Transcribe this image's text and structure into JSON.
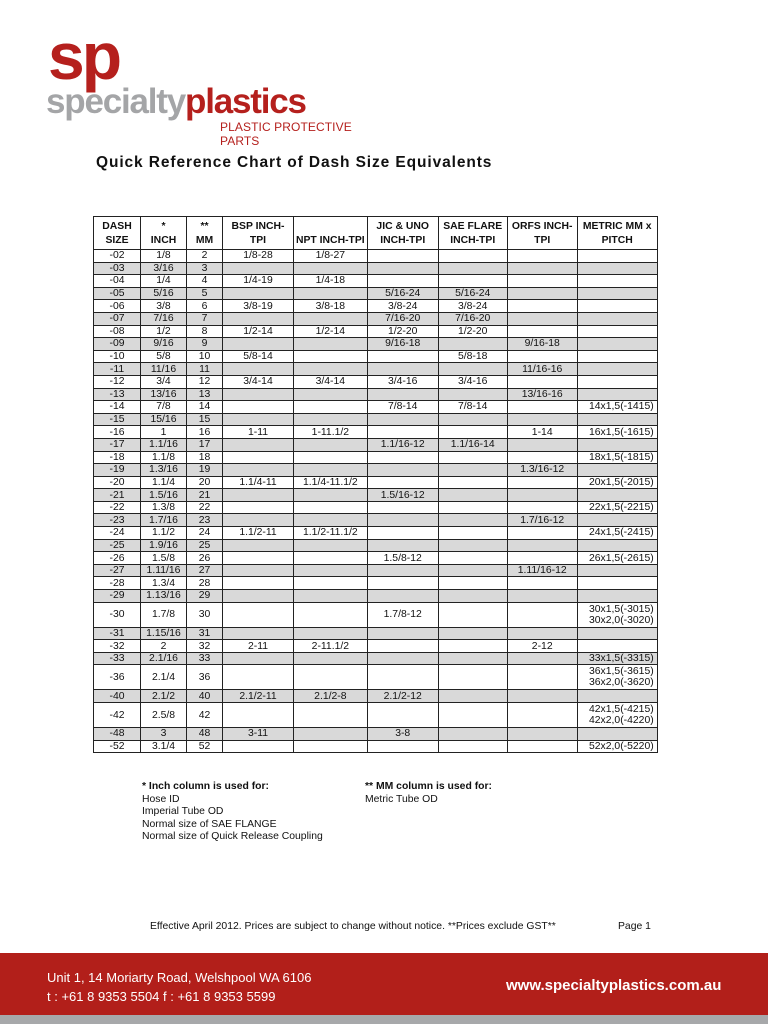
{
  "logo": {
    "mark": "sp",
    "name_a": "specialty",
    "name_b": "plastics",
    "tagline": "PLASTIC PROTECTIVE PARTS"
  },
  "brand_colors": {
    "red": "#b21f1a",
    "grey": "#a4a5a7"
  },
  "title": "Quick Reference Chart of Dash Size Equivalents",
  "table": {
    "headers": [
      [
        "DASH",
        "SIZE"
      ],
      [
        "*",
        "INCH"
      ],
      [
        "**",
        "MM"
      ],
      [
        "BSP INCH-",
        "TPI"
      ],
      [
        "",
        "NPT INCH-TPI"
      ],
      [
        "JIC & UNO",
        "INCH-TPI"
      ],
      [
        "SAE FLARE",
        "INCH-TPI"
      ],
      [
        "ORFS INCH-",
        "TPI"
      ],
      [
        "METRIC MM x",
        "PITCH"
      ]
    ],
    "rows": [
      [
        "-02",
        "1/8",
        "2",
        "1/8-28",
        "1/8-27",
        "",
        "",
        "",
        ""
      ],
      [
        "-03",
        "3/16",
        "3",
        "",
        "",
        "",
        "",
        "",
        ""
      ],
      [
        "-04",
        "1/4",
        "4",
        "1/4-19",
        "1/4-18",
        "",
        "",
        "",
        ""
      ],
      [
        "-05",
        "5/16",
        "5",
        "",
        "",
        "5/16-24",
        "5/16-24",
        "",
        ""
      ],
      [
        "-06",
        "3/8",
        "6",
        "3/8-19",
        "3/8-18",
        "3/8-24",
        "3/8-24",
        "",
        ""
      ],
      [
        "-07",
        "7/16",
        "7",
        "",
        "",
        "7/16-20",
        "7/16-20",
        "",
        ""
      ],
      [
        "-08",
        "1/2",
        "8",
        "1/2-14",
        "1/2-14",
        "1/2-20",
        "1/2-20",
        "",
        ""
      ],
      [
        "-09",
        "9/16",
        "9",
        "",
        "",
        "9/16-18",
        "",
        "9/16-18",
        ""
      ],
      [
        "-10",
        "5/8",
        "10",
        "5/8-14",
        "",
        "",
        "5/8-18",
        "",
        ""
      ],
      [
        "-11",
        "11/16",
        "11",
        "",
        "",
        "",
        "",
        "11/16-16",
        ""
      ],
      [
        "-12",
        "3/4",
        "12",
        "3/4-14",
        "3/4-14",
        "3/4-16",
        "3/4-16",
        "",
        ""
      ],
      [
        "-13",
        "13/16",
        "13",
        "",
        "",
        "",
        "",
        "13/16-16",
        ""
      ],
      [
        "-14",
        "7/8",
        "14",
        "",
        "",
        "7/8-14",
        "7/8-14",
        "",
        "14x1,5(-1415)"
      ],
      [
        "-15",
        "15/16",
        "15",
        "",
        "",
        "",
        "",
        "",
        ""
      ],
      [
        "-16",
        "1",
        "16",
        "1-11",
        "1-11.1/2",
        "",
        "",
        "1-14",
        "16x1,5(-1615)"
      ],
      [
        "-17",
        "1.1/16",
        "17",
        "",
        "",
        "1.1/16-12",
        "1.1/16-14",
        "",
        ""
      ],
      [
        "-18",
        "1.1/8",
        "18",
        "",
        "",
        "",
        "",
        "",
        "18x1,5(-1815)"
      ],
      [
        "-19",
        "1.3/16",
        "19",
        "",
        "",
        "",
        "",
        "1.3/16-12",
        ""
      ],
      [
        "-20",
        "1.1/4",
        "20",
        "1.1/4-11",
        "1.1/4-11.1/2",
        "",
        "",
        "",
        "20x1,5(-2015)"
      ],
      [
        "-21",
        "1.5/16",
        "21",
        "",
        "",
        "1.5/16-12",
        "",
        "",
        ""
      ],
      [
        "-22",
        "1.3/8",
        "22",
        "",
        "",
        "",
        "",
        "",
        "22x1,5(-2215)"
      ],
      [
        "-23",
        "1.7/16",
        "23",
        "",
        "",
        "",
        "",
        "1.7/16-12",
        ""
      ],
      [
        "-24",
        "1.1/2",
        "24",
        "1.1/2-11",
        "1.1/2-11.1/2",
        "",
        "",
        "",
        "24x1,5(-2415)"
      ],
      [
        "-25",
        "1.9/16",
        "25",
        "",
        "",
        "",
        "",
        "",
        ""
      ],
      [
        "-26",
        "1.5/8",
        "26",
        "",
        "",
        "1.5/8-12",
        "",
        "",
        "26x1,5(-2615)"
      ],
      [
        "-27",
        "1.11/16",
        "27",
        "",
        "",
        "",
        "",
        "1.11/16-12",
        ""
      ],
      [
        "-28",
        "1.3/4",
        "28",
        "",
        "",
        "",
        "",
        "",
        ""
      ],
      [
        "-29",
        "1.13/16",
        "29",
        "",
        "",
        "",
        "",
        "",
        ""
      ],
      [
        "-30",
        "1.7/8",
        "30",
        "",
        "",
        "1.7/8-12",
        "",
        "",
        "30x1,5(-3015)\n30x2,0(-3020)"
      ],
      [
        "-31",
        "1.15/16",
        "31",
        "",
        "",
        "",
        "",
        "",
        ""
      ],
      [
        "-32",
        "2",
        "32",
        "2-11",
        "2-11.1/2",
        "",
        "",
        "2-12",
        ""
      ],
      [
        "-33",
        "2.1/16",
        "33",
        "",
        "",
        "",
        "",
        "",
        "33x1,5(-3315)"
      ],
      [
        "-36",
        "2.1/4",
        "36",
        "",
        "",
        "",
        "",
        "",
        "36x1,5(-3615)\n36x2,0(-3620)"
      ],
      [
        "-40",
        "2.1/2",
        "40",
        "2.1/2-11",
        "2.1/2-8",
        "2.1/2-12",
        "",
        "",
        ""
      ],
      [
        "-42",
        "2.5/8",
        "42",
        "",
        "",
        "",
        "",
        "",
        "42x1,5(-4215)\n42x2,0(-4220)"
      ],
      [
        "-48",
        "3",
        "48",
        "3-11",
        "",
        "3-8",
        "",
        "",
        ""
      ],
      [
        "-52",
        "3.1/4",
        "52",
        "",
        "",
        "",
        "",
        "",
        "52x2,0(-5220)"
      ]
    ]
  },
  "notes": {
    "inch": {
      "heading": "* Inch column is used for:",
      "items": [
        "Hose ID",
        "Imperial Tube OD",
        "Normal size of SAE FLANGE",
        "Normal size of Quick Release Coupling"
      ]
    },
    "mm": {
      "heading": "** MM column is used for:",
      "items": [
        "Metric Tube OD"
      ]
    }
  },
  "footer": {
    "effective": "Effective April 2012. Prices are subject to change without notice. **Prices exclude GST**",
    "page": "Page 1",
    "address": "Unit 1, 14 Moriarty Road, Welshpool WA 6106",
    "phones": "t : +61 8 9353 5504  f : +61 8 9353 5599",
    "website": "www.specialtyplastics.com.au"
  }
}
